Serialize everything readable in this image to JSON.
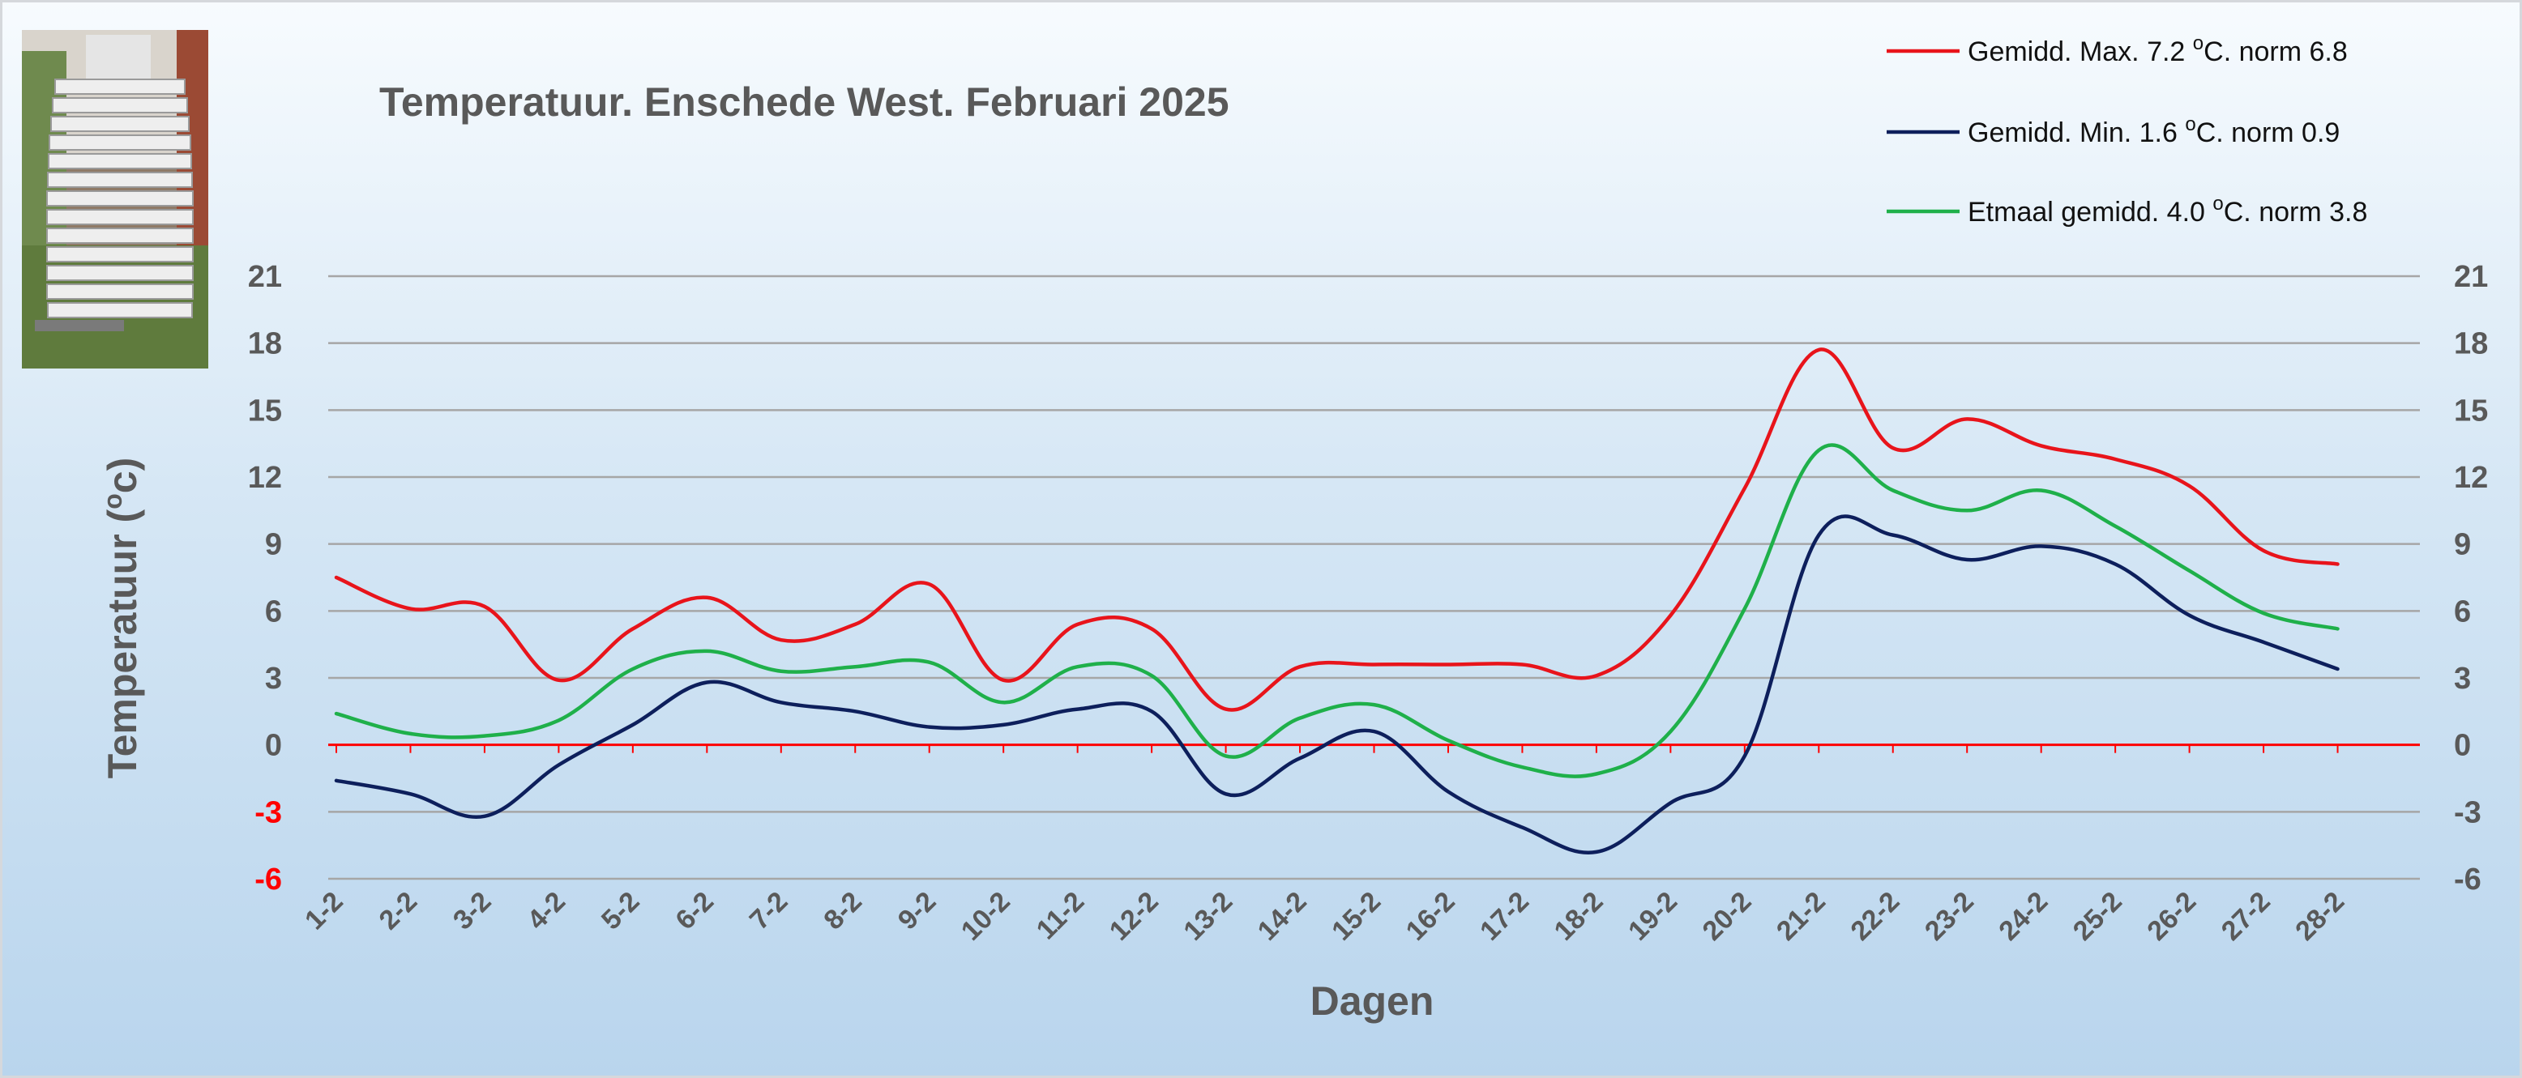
{
  "chart_data": {
    "type": "line",
    "title": "Temperatuur. Enschede West. Februari 2025",
    "xlabel": "Dagen",
    "ylabel_pre": "Temperatuur (",
    "ylabel_sup": "o",
    "ylabel_post": "c)",
    "ylim": [
      -6,
      21
    ],
    "yticks": [
      -6,
      -3,
      0,
      3,
      6,
      9,
      12,
      15,
      18,
      21
    ],
    "grid": true,
    "legend_position": "top-right",
    "categories": [
      "1-2",
      "2-2",
      "3-2",
      "4-2",
      "5-2",
      "6-2",
      "7-2",
      "8-2",
      "9-2",
      "10-2",
      "11-2",
      "12-2",
      "13-2",
      "14-2",
      "15-2",
      "16-2",
      "17-2",
      "18-2",
      "19-2",
      "20-2",
      "21-2",
      "22-2",
      "23-2",
      "24-2",
      "25-2",
      "26-2",
      "27-2",
      "28-2"
    ],
    "series": [
      {
        "name": "Gemidd. Max.",
        "legend_pre": "Gemidd. Max. 7.2  ",
        "legend_post": "C. norm 6.8",
        "color": "#e8141b",
        "values": [
          7.5,
          6.1,
          6.2,
          2.9,
          5.2,
          6.6,
          4.7,
          5.4,
          7.2,
          2.9,
          5.4,
          5.2,
          1.6,
          3.5,
          3.6,
          3.6,
          3.6,
          3.1,
          5.8,
          11.5,
          17.7,
          13.3,
          14.6,
          13.4,
          12.8,
          11.6,
          8.7,
          8.1
        ]
      },
      {
        "name": "Gemidd. Min.",
        "legend_pre": "Gemidd. Min. 1.6  ",
        "legend_post": "C. norm 0.9",
        "color": "#0d1f5c",
        "values": [
          -1.6,
          -2.2,
          -3.2,
          -0.9,
          0.9,
          2.8,
          1.9,
          1.5,
          0.8,
          0.9,
          1.6,
          1.5,
          -2.2,
          -0.6,
          0.6,
          -2.1,
          -3.7,
          -4.8,
          -2.6,
          -0.5,
          9.4,
          9.4,
          8.3,
          8.9,
          8.1,
          5.8,
          4.6,
          3.4
        ]
      },
      {
        "name": "Etmaal gemidd.",
        "legend_pre": "Etmaal gemidd. 4.0  ",
        "legend_post": "C. norm 3.8",
        "color": "#1fb04a",
        "values": [
          1.4,
          0.5,
          0.4,
          1.1,
          3.4,
          4.2,
          3.3,
          3.5,
          3.7,
          1.9,
          3.5,
          3.1,
          -0.5,
          1.2,
          1.8,
          0.2,
          -1.0,
          -1.3,
          0.6,
          6.1,
          13.2,
          11.4,
          10.5,
          11.4,
          9.8,
          7.8,
          5.9,
          5.2
        ]
      }
    ],
    "legend_sup": "o"
  },
  "photo": {
    "icon": "weather-station-photo"
  }
}
